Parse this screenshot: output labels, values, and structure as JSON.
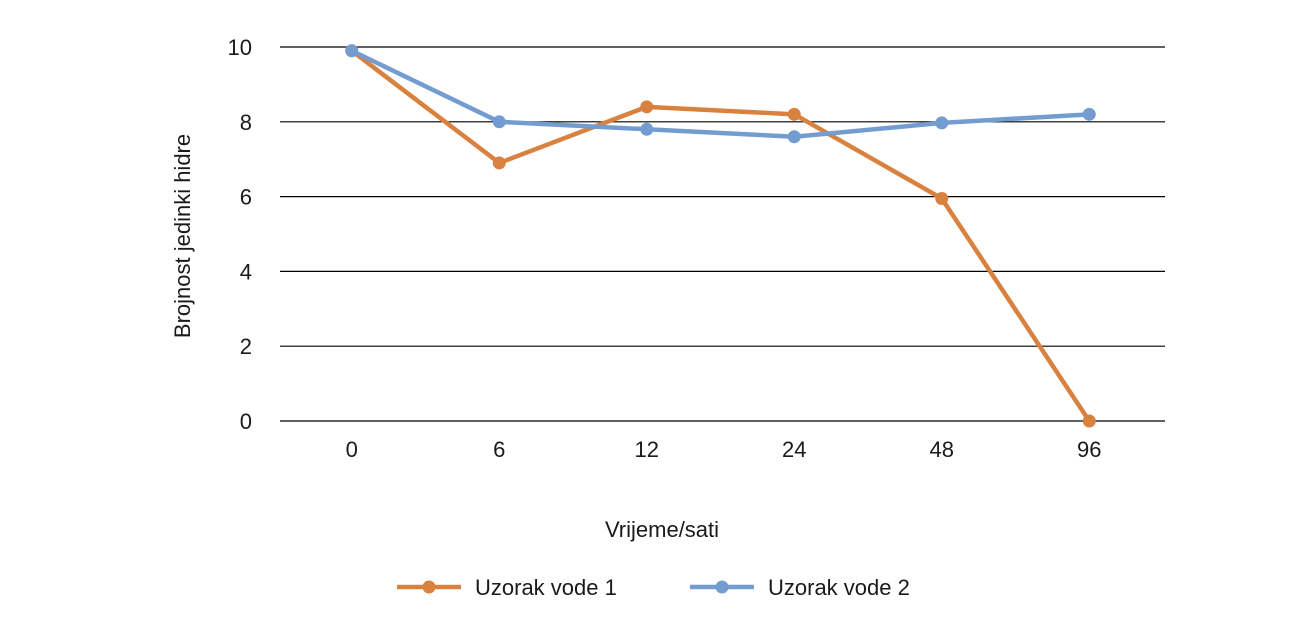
{
  "chart_data": {
    "type": "line",
    "title": "",
    "xlabel": "Vrijeme/sati",
    "ylabel": "Brojnost jedinki hidre",
    "categories": [
      "0",
      "6",
      "12",
      "24",
      "48",
      "96"
    ],
    "ylim": [
      0,
      10
    ],
    "yticks": [
      "0",
      "2",
      "4",
      "6",
      "8",
      "10"
    ],
    "grid": "horizontal",
    "legend_position": "bottom",
    "series": [
      {
        "name": "Uzorak vode 1",
        "color": "#D9823F",
        "values": [
          9.9,
          6.9,
          8.4,
          8.2,
          5.95,
          0
        ]
      },
      {
        "name": "Uzorak vode 2",
        "color": "#739CD0",
        "values": [
          9.9,
          8.0,
          7.8,
          7.6,
          7.97,
          8.2
        ]
      }
    ]
  }
}
